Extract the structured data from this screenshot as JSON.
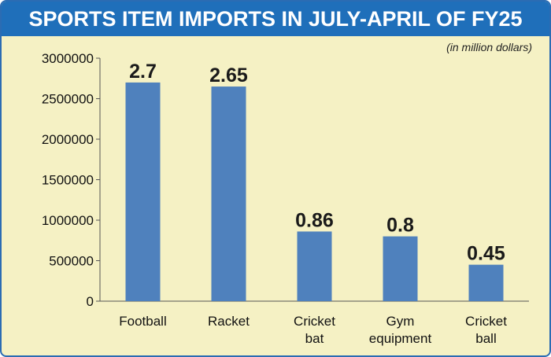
{
  "chart_data": {
    "type": "bar",
    "title": "SPORTS ITEM IMPORTS IN JULY-APRIL OF FY25",
    "subtitle": "(in million dollars)",
    "categories": [
      [
        "Football"
      ],
      [
        "Racket"
      ],
      [
        "Cricket",
        "bat"
      ],
      [
        "Gym",
        "equipment"
      ],
      [
        "Cricket",
        "ball"
      ]
    ],
    "values": [
      2700000,
      2650000,
      860000,
      800000,
      450000
    ],
    "data_labels": [
      "2.7",
      "2.65",
      "0.86",
      "0.8",
      "0.45"
    ],
    "y_ticks": [
      "0",
      "500000",
      "1000000",
      "1500000",
      "2000000",
      "2500000",
      "3000000"
    ],
    "ylim": [
      0,
      3000000
    ],
    "grid": false,
    "legend": "none"
  },
  "colors": {
    "bar": "#4f81bd",
    "background": "#f5f1c4",
    "title_bar": "#1f6fba",
    "title_text": "#ffffff"
  }
}
